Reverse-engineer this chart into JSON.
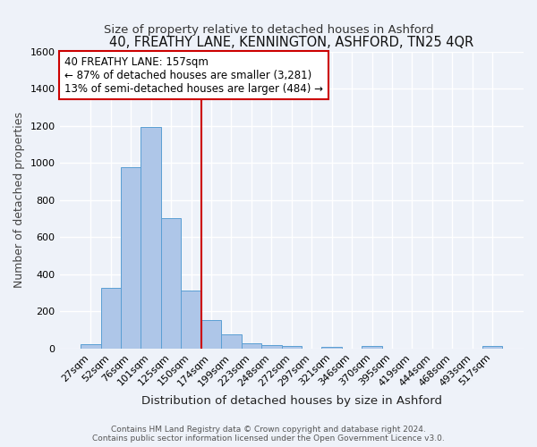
{
  "title": "40, FREATHY LANE, KENNINGTON, ASHFORD, TN25 4QR",
  "subtitle": "Size of property relative to detached houses in Ashford",
  "xlabel": "Distribution of detached houses by size in Ashford",
  "ylabel": "Number of detached properties",
  "footer_line1": "Contains HM Land Registry data © Crown copyright and database right 2024.",
  "footer_line2": "Contains public sector information licensed under the Open Government Licence v3.0.",
  "bar_labels": [
    "27sqm",
    "52sqm",
    "76sqm",
    "101sqm",
    "125sqm",
    "150sqm",
    "174sqm",
    "199sqm",
    "223sqm",
    "248sqm",
    "272sqm",
    "297sqm",
    "321sqm",
    "346sqm",
    "370sqm",
    "395sqm",
    "419sqm",
    "444sqm",
    "468sqm",
    "493sqm",
    "517sqm"
  ],
  "bar_heights": [
    25,
    325,
    975,
    1195,
    700,
    310,
    155,
    75,
    30,
    20,
    12,
    0,
    10,
    0,
    12,
    0,
    0,
    0,
    0,
    0,
    12
  ],
  "bar_color": "#aec6e8",
  "bar_edge_color": "#5a9fd4",
  "vline_color": "#cc0000",
  "ylim": [
    0,
    1600
  ],
  "yticks": [
    0,
    200,
    400,
    600,
    800,
    1000,
    1200,
    1400,
    1600
  ],
  "annotation_line1": "40 FREATHY LANE: 157sqm",
  "annotation_line2": "← 87% of detached houses are smaller (3,281)",
  "annotation_line3": "13% of semi-detached houses are larger (484) →",
  "bg_color": "#eef2f9",
  "grid_color": "#ffffff",
  "title_fontsize": 10.5,
  "subtitle_fontsize": 9.5,
  "axis_label_fontsize": 9,
  "tick_fontsize": 8,
  "annotation_fontsize": 8.5,
  "footer_fontsize": 6.5
}
